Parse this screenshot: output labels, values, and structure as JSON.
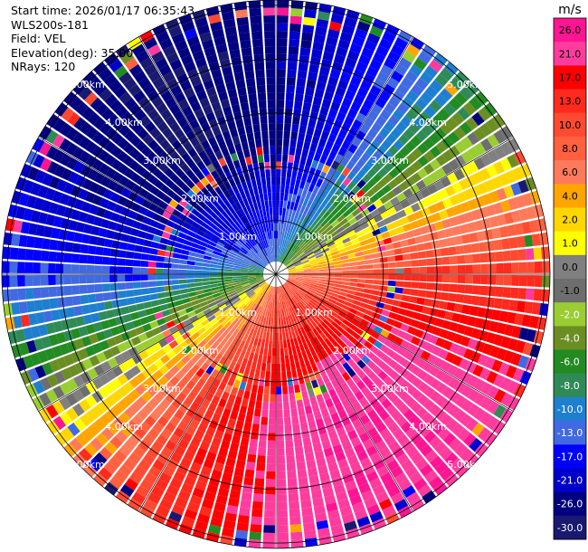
{
  "header": {
    "start_time": "Start time: 2026/01/17 06:35:43",
    "instrument": "WLS200s-181",
    "field": "Field: VEL",
    "elevation": "Elevation(deg): 35.00",
    "nrays": "NRays: 120"
  },
  "chart_data": {
    "type": "heatmap",
    "projection": "polar-ppi",
    "field": "VEL",
    "units": "m/s",
    "nrays": 120,
    "max_range_km": 5.1,
    "range_rings_km": [
      1,
      2,
      3,
      4,
      5
    ],
    "range_labels": [
      "1.00km",
      "2.00km",
      "3.00km",
      "4.00km",
      "5.00km"
    ],
    "azimuth_lines_deg": [
      0,
      30,
      60,
      90,
      120,
      150,
      180,
      210,
      240,
      270,
      300,
      330
    ],
    "colorbar": {
      "label": "m/s",
      "ticks": [
        "26.0",
        "21.0",
        "17.0",
        "13.0",
        "10.0",
        "8.0",
        "6.0",
        "4.0",
        "2.0",
        "1.0",
        "0.0",
        "-1.0",
        "-2.0",
        "-4.0",
        "-6.0",
        "-8.0",
        "-10.0",
        "-13.0",
        "-17.0",
        "-21.0",
        "-26.0",
        "-30.0"
      ],
      "bins": [
        {
          "min": 26,
          "max": 30,
          "color": "#ff1493"
        },
        {
          "min": 21,
          "max": 26,
          "color": "#ff3c9e"
        },
        {
          "min": 17,
          "max": 21,
          "color": "#ff0000"
        },
        {
          "min": 13,
          "max": 17,
          "color": "#ff2a1e"
        },
        {
          "min": 10,
          "max": 13,
          "color": "#ff4a32"
        },
        {
          "min": 8,
          "max": 10,
          "color": "#ff6040"
        },
        {
          "min": 6,
          "max": 8,
          "color": "#ff7a5a"
        },
        {
          "min": 4,
          "max": 6,
          "color": "#ffa500"
        },
        {
          "min": 2,
          "max": 4,
          "color": "#ffd700"
        },
        {
          "min": 1,
          "max": 2,
          "color": "#ffff00"
        },
        {
          "min": 0,
          "max": 1,
          "color": "#808080"
        },
        {
          "min": -1,
          "max": 0,
          "color": "#6e6e6e"
        },
        {
          "min": -2,
          "max": -1,
          "color": "#9acd32"
        },
        {
          "min": -4,
          "max": -2,
          "color": "#6b8e23"
        },
        {
          "min": -6,
          "max": -4,
          "color": "#228b22"
        },
        {
          "min": -8,
          "max": -6,
          "color": "#2e8b57"
        },
        {
          "min": -10,
          "max": -8,
          "color": "#1e7fd0"
        },
        {
          "min": -13,
          "max": -10,
          "color": "#4169e1"
        },
        {
          "min": -17,
          "max": -13,
          "color": "#0000ff"
        },
        {
          "min": -21,
          "max": -17,
          "color": "#0000cd"
        },
        {
          "min": -26,
          "max": -21,
          "color": "#000080"
        },
        {
          "min": -30,
          "max": -26,
          "color": "#191970"
        }
      ]
    },
    "wind_model": {
      "peak_ms": -26,
      "zero_azimuths_deg": [
        80,
        280
      ],
      "min_azimuth_deg": 330,
      "max_azimuth_deg": 150
    }
  }
}
